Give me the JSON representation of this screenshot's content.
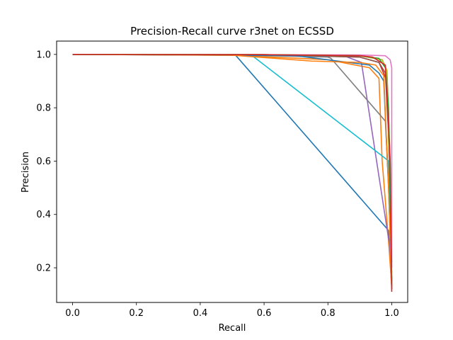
{
  "chart_data": {
    "type": "line",
    "title": "Precision-Recall curve r3net on ECSSD",
    "xlabel": "Recall",
    "ylabel": "Precision",
    "xlim": [
      -0.05,
      1.05
    ],
    "ylim": [
      0.07,
      1.05
    ],
    "xticks": [
      "0.0",
      "0.2",
      "0.4",
      "0.6",
      "0.8",
      "1.0"
    ],
    "yticks": [
      "0.2",
      "0.4",
      "0.6",
      "0.8",
      "1.0"
    ],
    "grid": false,
    "legend": "none",
    "series": [
      {
        "color": "#1f77b4",
        "x": [
          0.0,
          0.51,
          0.99,
          1.0
        ],
        "y": [
          1.0,
          0.998,
          0.34,
          0.12
        ]
      },
      {
        "color": "#ff7f0e",
        "x": [
          0.0,
          0.5,
          0.8,
          0.93,
          0.96,
          0.97,
          0.99,
          1.0
        ],
        "y": [
          1.0,
          0.997,
          0.98,
          0.95,
          0.91,
          0.6,
          0.3,
          0.13
        ]
      },
      {
        "color": "#2ca02c",
        "x": [
          0.0,
          0.6,
          0.9,
          0.97,
          0.985,
          0.995,
          1.0
        ],
        "y": [
          1.0,
          0.999,
          0.995,
          0.98,
          0.94,
          0.6,
          0.14
        ]
      },
      {
        "color": "#d62728",
        "x": [
          0.0,
          0.6,
          0.9,
          0.96,
          0.985,
          0.995,
          1.0
        ],
        "y": [
          1.0,
          0.999,
          0.99,
          0.97,
          0.9,
          0.5,
          0.11
        ]
      },
      {
        "color": "#9467bd",
        "x": [
          0.0,
          0.5,
          0.85,
          0.905,
          0.995,
          1.0
        ],
        "y": [
          1.0,
          0.999,
          0.995,
          0.97,
          0.27,
          0.15
        ]
      },
      {
        "color": "#8c564b",
        "x": [
          0.0,
          0.6,
          0.9,
          0.96,
          0.98,
          0.99,
          1.0
        ],
        "y": [
          1.0,
          0.998,
          0.99,
          0.97,
          0.93,
          0.7,
          0.13
        ]
      },
      {
        "color": "#e377c2",
        "x": [
          0.0,
          0.6,
          0.9,
          0.98,
          0.995,
          1.0,
          1.0
        ],
        "y": [
          1.0,
          0.999,
          0.998,
          0.995,
          0.98,
          0.95,
          0.2
        ]
      },
      {
        "color": "#7f7f7f",
        "x": [
          0.0,
          0.5,
          0.8,
          0.81,
          0.98,
          0.995,
          1.0
        ],
        "y": [
          1.0,
          0.999,
          0.99,
          0.985,
          0.75,
          0.4,
          0.15
        ]
      },
      {
        "color": "#bcbd22",
        "x": [
          0.0,
          0.6,
          0.9,
          0.97,
          0.985,
          0.99,
          1.0
        ],
        "y": [
          1.0,
          0.999,
          0.995,
          0.98,
          0.94,
          0.7,
          0.18
        ]
      },
      {
        "color": "#17becf",
        "x": [
          0.0,
          0.56,
          0.98,
          0.99,
          1.0
        ],
        "y": [
          1.0,
          0.998,
          0.61,
          0.6,
          0.22
        ]
      },
      {
        "color": "#1f77b4",
        "x": [
          0.0,
          0.7,
          0.93,
          0.96,
          0.975,
          0.99,
          1.0
        ],
        "y": [
          1.0,
          0.995,
          0.96,
          0.93,
          0.9,
          0.5,
          0.15
        ]
      },
      {
        "color": "#ff7f0e",
        "x": [
          0.0,
          0.5,
          0.75,
          0.9,
          0.95,
          0.975,
          0.99,
          1.0
        ],
        "y": [
          1.0,
          0.997,
          0.975,
          0.97,
          0.96,
          0.92,
          0.5,
          0.13
        ]
      },
      {
        "color": "#2ca02c",
        "x": [
          0.0,
          0.6,
          0.9,
          0.96,
          0.98,
          0.99,
          1.0
        ],
        "y": [
          1.0,
          0.999,
          0.995,
          0.985,
          0.95,
          0.8,
          0.16
        ]
      },
      {
        "color": "#d62728",
        "x": [
          0.0,
          0.6,
          0.9,
          0.94,
          0.98,
          0.995,
          1.0
        ],
        "y": [
          1.0,
          0.999,
          0.995,
          0.99,
          0.96,
          0.6,
          0.12
        ]
      }
    ]
  }
}
